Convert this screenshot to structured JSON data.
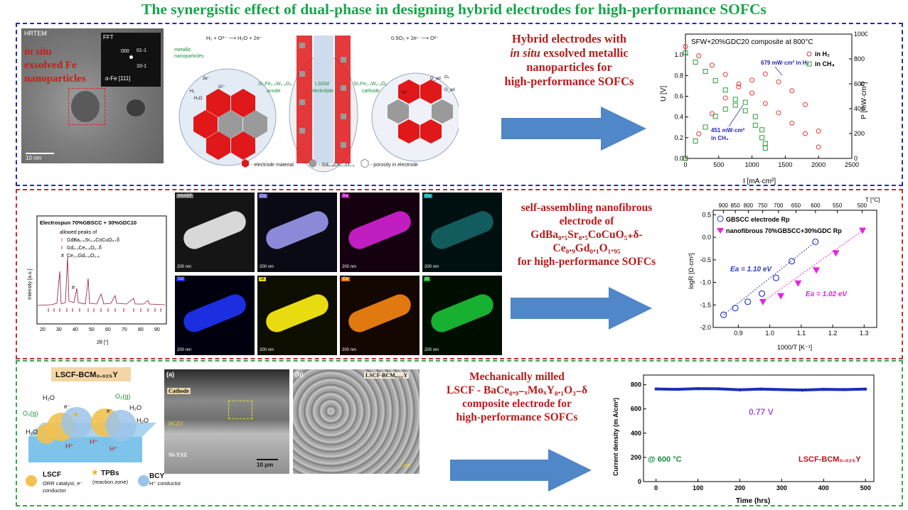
{
  "title": "The synergistic effect of dual-phase in designing hybrid electrodes for high-performance SOFCs",
  "panel1": {
    "tem": {
      "tag": "HRTEM",
      "caption_line1": "in situ",
      "caption_line2": "exsolved Fe",
      "caption_line3": "nanoparticles",
      "fft_label": "FFT",
      "fft_idx1": "000",
      "fft_idx2": "01-1",
      "fft_idx3": "10-1",
      "fft_phase": "α-Fe [111]",
      "scale": "10 nm"
    },
    "schematic": {
      "eq_anode": "H₂ + O²⁻ ⟶ H₂O + 2e⁻",
      "eq_cathode": "0.5O₂ + 2e⁻ ⟶ O²⁻",
      "np_label_1": "metallic",
      "np_label_2": "nanoparticles",
      "anode_1": "Sr₂Fe₁.₅W₀.₅O₆",
      "anode_2": "anode",
      "electrolyte_1": "LSGM",
      "electrolyte_2": "electrolyte",
      "cathode_1": "Sr₂Fe₁.₅W₀.₅O₆",
      "cathode_2": "cathode",
      "legend_electrode": "- electrode material",
      "legend_gdc": "- Gd₀.₈Ce₀.₂O₁.₉",
      "legend_porosity": "- porosity in electrode",
      "small_labels": [
        "2e⁻",
        "O²⁻",
        "H₂",
        "H₂O",
        "O²⁻",
        "O₂",
        "O_ad",
        "O_ad"
      ]
    },
    "text_lines": [
      "Hybrid electrodes with",
      "in situ",
      " exsolved metallic",
      "nanoparticles for",
      "high-performance SOFCs"
    ]
  },
  "panel2": {
    "xrd": {
      "title": "Electrospun 70%GBSCC + 30%GDC10",
      "allowed": "allowed peaks of",
      "peak1": "GdBa₀.₅Sr₀.₅CoCuO₅₊δ",
      "peak2": "Gd₀.₁Ce₀.₉O₂₋δ",
      "peak3": "Ce₁.₂Gd₀.₈O₃.₆",
      "mark1": "I",
      "mark2": "I",
      "mark3": "#",
      "ylabel": "Intensity [a.u.]",
      "xlabel": "2θ [°]",
      "xticks": [
        "20",
        "30",
        "40",
        "50",
        "60",
        "70",
        "80",
        "90"
      ]
    },
    "eds": {
      "tags": [
        "HAADF",
        "Co",
        "Ba",
        "Cu",
        "Gd",
        "Sr",
        "Ce",
        "O"
      ],
      "scale": "200 nm"
    },
    "text_lines": [
      "self-assembling nanofibrous",
      "electrode of",
      "GdBa₀.₅Sr₀.₅CoCuO₅₊δ-",
      "Ce₀.₉Gd₀.₁O₁.₉₅",
      "for high-performance SOFCs"
    ]
  },
  "panel3": {
    "schem": {
      "title": "LSCF-BCM₀.₀₂₅Y",
      "legend_lscf": "LSCF",
      "legend_lscf_sub1": "ORR catalyst, e⁻",
      "legend_lscf_sub2": "conductor",
      "legend_tpb": "TPBs",
      "legend_tpb_sub": "(reaction zone)",
      "legend_bcy": "BCY",
      "legend_bcy_sub": "H⁺ conductor",
      "labels": [
        "H₂O",
        "O₂(g)",
        "H₂O",
        "O₂(g)",
        "H₂O",
        "H₂O",
        "e⁻",
        "H⁺",
        "H⁺",
        "H⁺",
        "e⁻"
      ]
    },
    "sem": {
      "a_label": "(a)",
      "b_label": "(b)",
      "cathode": "Cathode",
      "bczy": "BCZY",
      "anode": "Ni-YSZ",
      "scale": "10 μm",
      "b_title": "LSCF-BCM₀.₀₂₅Y",
      "b_scale": "1 μm"
    },
    "text_lines": [
      "Mechanically milled",
      "LSCF - BaCe₀.₉₋ₓMoₓY₀.₁O₃₋δ",
      "composite electrode for",
      "high-performance SOFCs"
    ]
  },
  "chart_data": [
    {
      "type": "line",
      "title": "SFW+20%GDC20 composite at 800°C",
      "xlabel": "I [mA·cm²]",
      "ylabel": "U [V]",
      "y2label": "P [mW·cm²]",
      "xlim": [
        0,
        2500
      ],
      "ylim": [
        0,
        1.2
      ],
      "y2lim": [
        0,
        1000
      ],
      "xticks": [
        "0",
        "500",
        "1000",
        "1500",
        "2000",
        "2500"
      ],
      "yticks": [
        "0.0",
        "0.2",
        "0.4",
        "0.6",
        "0.8",
        "1.0"
      ],
      "y2ticks": [
        "0",
        "200",
        "400",
        "600",
        "800",
        "1000"
      ],
      "series": [
        {
          "name": "in H₂",
          "kind": "voltage",
          "color": "#e53935",
          "x": [
            0,
            200,
            400,
            600,
            800,
            1000,
            1200,
            1400,
            1600,
            1800,
            2000
          ],
          "y": [
            1.08,
            0.99,
            0.9,
            0.81,
            0.72,
            0.63,
            0.53,
            0.44,
            0.34,
            0.24,
            0.11
          ]
        },
        {
          "name": "in H₂",
          "kind": "power",
          "color": "#e53935",
          "x": [
            0,
            200,
            400,
            600,
            800,
            1000,
            1200,
            1400,
            1600,
            1800,
            2000
          ],
          "y": [
            0,
            198,
            360,
            486,
            576,
            630,
            679,
            616,
            544,
            432,
            220
          ]
        },
        {
          "name": "in CH₄",
          "kind": "voltage",
          "color": "#2e9b3a",
          "x": [
            0,
            150,
            300,
            450,
            600,
            750,
            900,
            1050,
            1150,
            1200
          ],
          "y": [
            1.02,
            0.93,
            0.84,
            0.75,
            0.66,
            0.57,
            0.46,
            0.32,
            0.2,
            0.1
          ]
        },
        {
          "name": "in CH₄",
          "kind": "power",
          "color": "#2e9b3a",
          "x": [
            0,
            150,
            300,
            450,
            600,
            750,
            900,
            1050,
            1150,
            1200
          ],
          "y": [
            0,
            140,
            252,
            338,
            396,
            428,
            451,
            336,
            230,
            120
          ]
        }
      ],
      "annotations": [
        "679 mW·cm²  in H₂",
        "451 mW·cm²",
        "in CH₄"
      ],
      "legend": "top-right"
    },
    {
      "type": "scatter",
      "xlabel": "1000/T [K⁻¹]",
      "ylabel": "logR [Ω·cm²]",
      "x2label": "T [°C]",
      "xlim": [
        0.82,
        1.34
      ],
      "ylim": [
        -2.0,
        0.6
      ],
      "xticks": [
        "0.9",
        "1.0",
        "1.1",
        "1.2",
        "1.3"
      ],
      "yticks": [
        "-2.0",
        "-1.5",
        "-1.0",
        "-0.5",
        "0.0",
        "0.5"
      ],
      "x2ticks": [
        "900",
        "850",
        "800",
        "750",
        "700",
        "650",
        "600",
        "550",
        "500"
      ],
      "series": [
        {
          "name": "GBSCC electrode Rp",
          "marker": "circle",
          "color": "#2f39c9",
          "x": [
            0.853,
            0.89,
            0.93,
            0.975,
            1.02,
            1.07,
            1.145
          ],
          "y": [
            -1.72,
            -1.57,
            -1.43,
            -1.25,
            -0.9,
            -0.53,
            -0.1
          ],
          "fit_label": "Ea = 1.10 eV"
        },
        {
          "name": "nanofibrous 70%GBSCC+30%GDC Rp",
          "marker": "triangle-down",
          "color": "#e524e0",
          "x": [
            0.978,
            1.035,
            1.09,
            1.148,
            1.21,
            1.295
          ],
          "y": [
            -1.43,
            -1.3,
            -1.02,
            -0.73,
            -0.35,
            0.15
          ],
          "fit_label": "Ea = 1.02 eV"
        }
      ],
      "legend": "top-left"
    },
    {
      "type": "line",
      "xlabel": "Time (hrs)",
      "ylabel": "Current density (m A/cm²)",
      "xlim": [
        -30,
        520
      ],
      "ylim": [
        0,
        880
      ],
      "xticks": [
        "0",
        "100",
        "200",
        "300",
        "400",
        "500"
      ],
      "yticks": [
        "0",
        "200",
        "400",
        "600",
        "800"
      ],
      "series": [
        {
          "name": "LSCF-BCM₀.₀₂₅Y",
          "color": "#1a2fb8",
          "x": [
            0,
            50,
            100,
            150,
            200,
            250,
            300,
            350,
            400,
            450,
            500
          ],
          "y": [
            765,
            762,
            768,
            766,
            758,
            764,
            760,
            756,
            762,
            760,
            764
          ]
        }
      ],
      "annotations": [
        "0.77 V",
        "@ 600 °C",
        "LSCF-BCM₀.₀₂₅Y"
      ]
    }
  ]
}
